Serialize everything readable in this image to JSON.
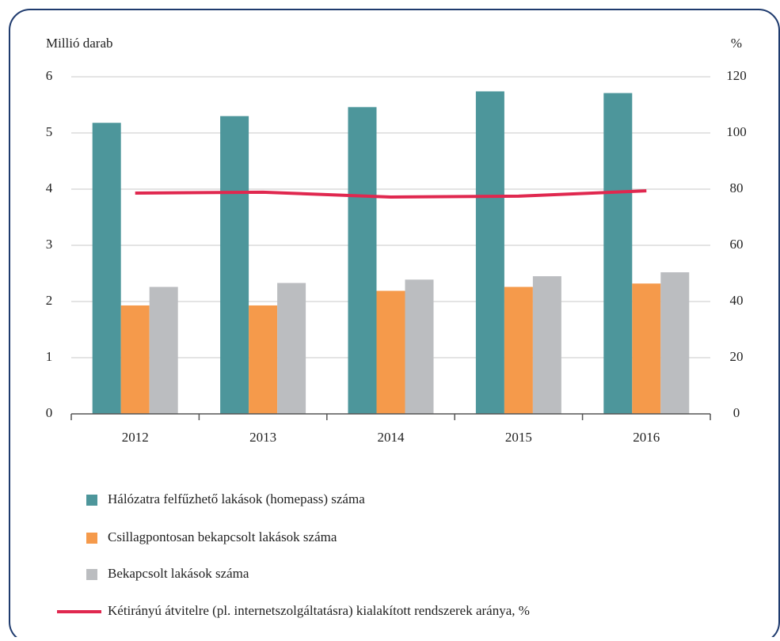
{
  "chart_data": {
    "type": "bar",
    "y_label": "Millió darab",
    "y2_label": "%",
    "categories": [
      "2012",
      "2013",
      "2014",
      "2015",
      "2016"
    ],
    "series": [
      {
        "name": "Hálózatra felfűzhető lakások (homepass) száma",
        "color": "#4d969b",
        "values": [
          5.18,
          5.3,
          5.46,
          5.74,
          5.71
        ]
      },
      {
        "name": "Csillagpontosan bekapcsolt lakások száma",
        "color": "#f59a4b",
        "values": [
          1.93,
          1.93,
          2.19,
          2.26,
          2.32
        ]
      },
      {
        "name": "Bekapcsolt lakások száma",
        "color": "#bbbdc0",
        "values": [
          2.26,
          2.33,
          2.39,
          2.45,
          2.52
        ]
      },
      {
        "name": "Kétirányú átvitelre (pl. internetszolgáltatásra) kialakított rendszerek aránya, %",
        "color": "#e0284f",
        "type": "line",
        "axis": "y2",
        "values": [
          78.6,
          78.9,
          77.2,
          77.5,
          79.4
        ]
      }
    ],
    "ylim": [
      0,
      6
    ],
    "yticks": [
      0,
      1,
      2,
      3,
      4,
      5,
      6
    ],
    "y2lim": [
      0,
      120
    ],
    "y2ticks": [
      0,
      20,
      40,
      60,
      80,
      100,
      120
    ],
    "grid": true
  }
}
